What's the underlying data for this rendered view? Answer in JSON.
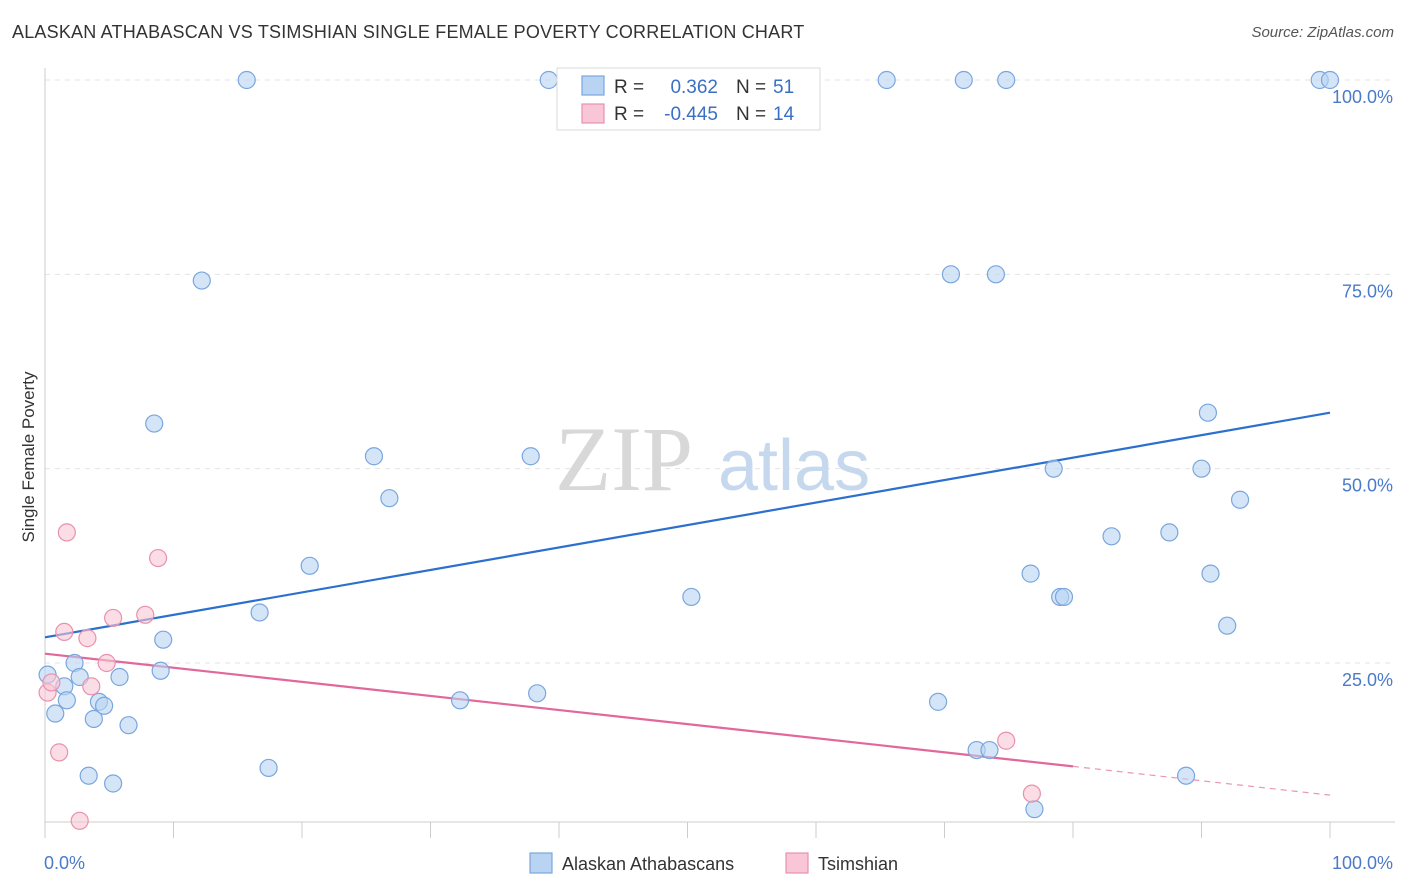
{
  "header": {
    "title": "ALASKAN ATHABASCAN VS TSIMSHIAN SINGLE FEMALE POVERTY CORRELATION CHART",
    "source": "Source: ZipAtlas.com"
  },
  "watermark": {
    "zip": "ZIP",
    "atlas": "atlas"
  },
  "legend": {
    "rows": [
      {
        "r_label": "R =",
        "r_value": "0.362",
        "n_label": "N =",
        "n_value": "51"
      },
      {
        "r_label": "R =",
        "r_value": "-0.445",
        "n_label": "N =",
        "n_value": "14"
      }
    ]
  },
  "chart_data": {
    "type": "scatter",
    "title": "ALASKAN ATHABASCAN VS TSIMSHIAN SINGLE FEMALE POVERTY CORRELATION CHART",
    "xlabel": "",
    "ylabel": "Single Female Poverty",
    "xlim": [
      0,
      100
    ],
    "ylim": [
      0,
      103
    ],
    "x_tick_labels": [
      "0.0%",
      "100.0%"
    ],
    "y_tick_labels": [
      "25.0%",
      "50.0%",
      "75.0%",
      "100.0%"
    ],
    "y_ticks": [
      25,
      50,
      75,
      100
    ],
    "grid": true,
    "legend_position": "top-center",
    "colors": {
      "blue_fill": "#b9d3f3",
      "blue_stroke": "#7aa6de",
      "blue_line": "#2b6fcf",
      "pink_fill": "#f8c6d6",
      "pink_stroke": "#e891ae",
      "pink_line": "#e2679a",
      "tick_text": "#4a7ac8"
    },
    "series": [
      {
        "name": "Alaskan Athabascans",
        "r": 0.362,
        "n": 51,
        "trend": {
          "x0": 0,
          "y0": 28.3,
          "x1": 100,
          "y1": 57.2
        },
        "points": [
          [
            0.2,
            23.5
          ],
          [
            0.8,
            18.5
          ],
          [
            1.5,
            22.0
          ],
          [
            1.7,
            20.2
          ],
          [
            2.3,
            25.0
          ],
          [
            2.7,
            23.2
          ],
          [
            3.4,
            10.5
          ],
          [
            3.8,
            17.8
          ],
          [
            4.2,
            20.0
          ],
          [
            4.6,
            19.5
          ],
          [
            5.3,
            9.5
          ],
          [
            5.8,
            23.2
          ],
          [
            6.5,
            17.0
          ],
          [
            8.5,
            55.8
          ],
          [
            9.0,
            24.0
          ],
          [
            9.2,
            28.0
          ],
          [
            12.2,
            74.2
          ],
          [
            15.7,
            100.0
          ],
          [
            16.7,
            31.5
          ],
          [
            17.4,
            11.5
          ],
          [
            20.6,
            37.5
          ],
          [
            25.6,
            51.6
          ],
          [
            26.8,
            46.2
          ],
          [
            32.3,
            20.2
          ],
          [
            37.8,
            51.6
          ],
          [
            38.3,
            21.1
          ],
          [
            39.2,
            100.0
          ],
          [
            50.3,
            33.5
          ],
          [
            65.5,
            100.0
          ],
          [
            69.5,
            20.0
          ],
          [
            70.5,
            75.0
          ],
          [
            71.5,
            100.0
          ],
          [
            72.5,
            13.8
          ],
          [
            73.5,
            13.8
          ],
          [
            74.0,
            75.0
          ],
          [
            74.8,
            100.0
          ],
          [
            76.7,
            36.5
          ],
          [
            77.0,
            6.2
          ],
          [
            78.5,
            50.0
          ],
          [
            79.0,
            33.5
          ],
          [
            79.3,
            33.5
          ],
          [
            83.0,
            41.3
          ],
          [
            87.5,
            41.8
          ],
          [
            88.8,
            10.5
          ],
          [
            90.0,
            50.0
          ],
          [
            90.7,
            36.5
          ],
          [
            90.5,
            57.2
          ],
          [
            92.0,
            29.8
          ],
          [
            93.0,
            46.0
          ],
          [
            99.2,
            100.0
          ],
          [
            100.0,
            100.0
          ]
        ]
      },
      {
        "name": "Tsimshian",
        "r": -0.445,
        "n": 14,
        "trend": {
          "x0": 0,
          "y0": 26.2,
          "x1": 80,
          "y1": 11.7,
          "x_dash_end": 100,
          "y_dash_end": 8.0
        },
        "points": [
          [
            0.2,
            21.2
          ],
          [
            0.5,
            22.5
          ],
          [
            1.1,
            13.5
          ],
          [
            1.5,
            29.0
          ],
          [
            1.7,
            41.8
          ],
          [
            2.7,
            4.7
          ],
          [
            3.3,
            28.2
          ],
          [
            3.6,
            22.0
          ],
          [
            4.8,
            25.0
          ],
          [
            5.3,
            30.8
          ],
          [
            7.8,
            31.2
          ],
          [
            8.8,
            38.5
          ],
          [
            74.8,
            15.0
          ],
          [
            76.8,
            8.2
          ]
        ]
      }
    ]
  }
}
